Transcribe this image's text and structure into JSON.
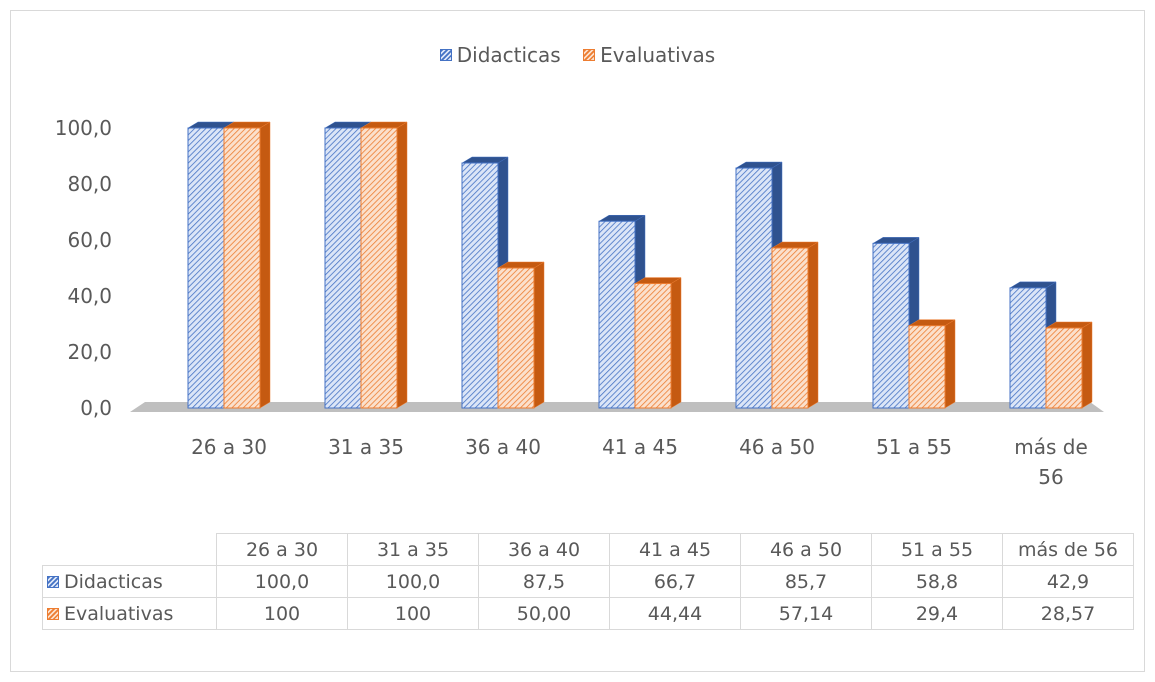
{
  "chart_data": {
    "type": "bar",
    "categories": [
      "26 a 30",
      "31 a 35",
      "36 a 40",
      "41 a 45",
      "46 a 50",
      "51 a 55",
      "más de 56"
    ],
    "series": [
      {
        "name": "Didacticas",
        "values": [
          100.0,
          100.0,
          87.5,
          66.7,
          85.7,
          58.8,
          42.9
        ],
        "color": "#4472c4"
      },
      {
        "name": "Evaluativas",
        "values": [
          100,
          100,
          50.0,
          44.44,
          57.14,
          29.4,
          28.57
        ],
        "color": "#ed7d31"
      }
    ],
    "ylim": [
      0,
      100
    ],
    "yticks": [
      "0,0",
      "20,0",
      "40,0",
      "60,0",
      "80,0",
      "100,0"
    ],
    "grid": false,
    "legend_position": "top",
    "style": "3d-clustered-column-hatched",
    "data_table": {
      "headers": [
        "26 a 30",
        "31 a 35",
        "36 a 40",
        "41 a 45",
        "46 a 50",
        "51 a 55",
        "más de 56"
      ],
      "rows": [
        {
          "label": "Didacticas",
          "cells": [
            "100,0",
            "100,0",
            "87,5",
            "66,7",
            "85,7",
            "58,8",
            "42,9"
          ]
        },
        {
          "label": "Evaluativas",
          "cells": [
            "100",
            "100",
            "50,00",
            "44,44",
            "57,14",
            "29,4",
            "28,57"
          ]
        }
      ]
    }
  }
}
